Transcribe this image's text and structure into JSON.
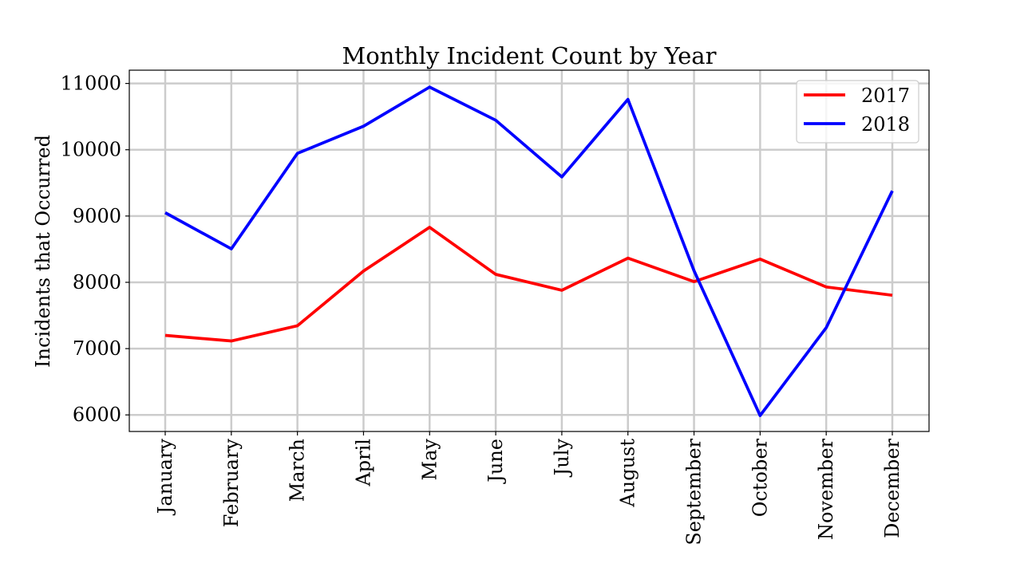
{
  "chart_data": {
    "type": "line",
    "title": "Monthly Incident Count by Year",
    "xlabel": "",
    "ylabel": "Incidents that Occurred",
    "categories": [
      "January",
      "February",
      "March",
      "April",
      "May",
      "June",
      "July",
      "August",
      "September",
      "October",
      "November",
      "December"
    ],
    "series": [
      {
        "name": "2017",
        "color": "#ff0000",
        "values": [
          7200,
          7115,
          7345,
          8170,
          8830,
          8120,
          7880,
          8365,
          8010,
          8350,
          7930,
          7805
        ]
      },
      {
        "name": "2018",
        "color": "#0000ff",
        "values": [
          9050,
          8505,
          9945,
          10355,
          10945,
          10445,
          9590,
          10760,
          8175,
          5990,
          7315,
          9380
        ]
      }
    ],
    "ylim": [
      5750,
      11200
    ],
    "yticks": [
      6000,
      7000,
      8000,
      9000,
      10000,
      11000
    ],
    "grid": true,
    "legend_position": "top-right"
  }
}
